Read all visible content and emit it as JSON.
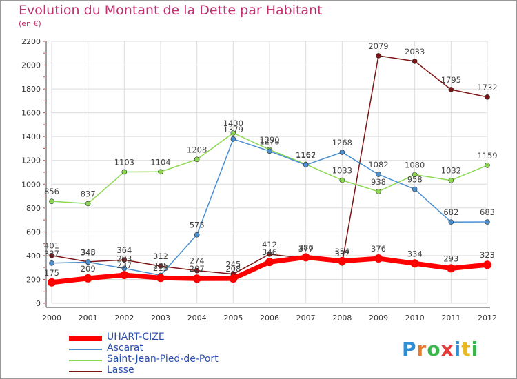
{
  "title": "Evolution du Montant de la Dette par Habitant",
  "unit": "(en €)",
  "logo": "Proxiti",
  "chart_data": {
    "type": "line",
    "x": [
      "2000",
      "2001",
      "2002",
      "2003",
      "2004",
      "2005",
      "2006",
      "2007",
      "2008",
      "2009",
      "2010",
      "2011",
      "2012"
    ],
    "ylim": [
      0,
      2200
    ],
    "yticks": [
      0,
      200,
      400,
      600,
      800,
      1000,
      1200,
      1400,
      1600,
      1800,
      2000,
      2200
    ],
    "grid": true,
    "legend": "bottom-left",
    "series": [
      {
        "name": "UHART-CIZE",
        "color": "#ff0000",
        "values": [
          175,
          209,
          237,
          213,
          207,
          208,
          346,
          386,
          354,
          376,
          334,
          293,
          323
        ]
      },
      {
        "name": "Ascarat",
        "color": "#4a90d0",
        "values": [
          337,
          345,
          293,
          235,
          575,
          1379,
          1278,
          1162,
          1268,
          1082,
          958,
          682,
          683
        ]
      },
      {
        "name": "Saint-Jean-Pied-de-Port",
        "color": "#8cd850",
        "values": [
          856,
          837,
          1103,
          1104,
          1208,
          1430,
          1290,
          1167,
          1033,
          938,
          1080,
          1032,
          1159
        ]
      },
      {
        "name": "Lasse",
        "color": "#7b1515",
        "values": [
          401,
          348,
          364,
          312,
          274,
          245,
          412,
          377,
          337,
          2079,
          2033,
          1795,
          1732
        ]
      }
    ]
  }
}
